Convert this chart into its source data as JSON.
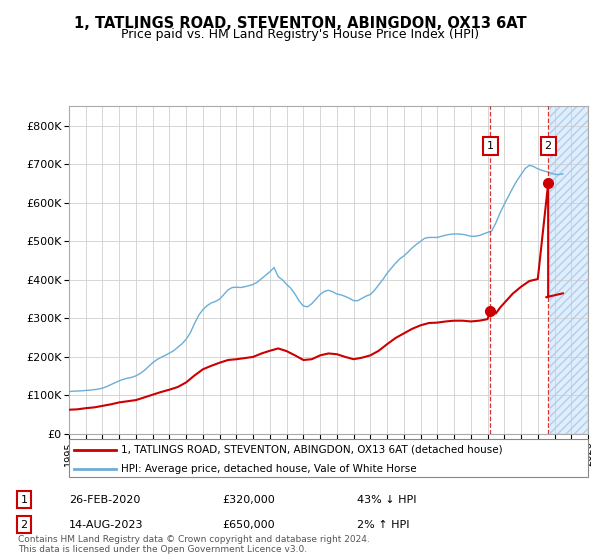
{
  "title": "1, TATLINGS ROAD, STEVENTON, ABINGDON, OX13 6AT",
  "subtitle": "Price paid vs. HM Land Registry's House Price Index (HPI)",
  "title_fontsize": 10.5,
  "subtitle_fontsize": 9,
  "ylim": [
    0,
    850000
  ],
  "yticks": [
    0,
    100000,
    200000,
    300000,
    400000,
    500000,
    600000,
    700000,
    800000
  ],
  "ytick_labels": [
    "£0",
    "£100K",
    "£200K",
    "£300K",
    "£400K",
    "£500K",
    "£600K",
    "£700K",
    "£800K"
  ],
  "hpi_color": "#6baed6",
  "price_color": "#cc0000",
  "marker_color": "#cc0000",
  "dashed_color": "#cc0000",
  "grid_color": "#d0d0d0",
  "bg_color": "#ffffff",
  "plot_bg_color": "#ffffff",
  "future_shade_color": "#ddeeff",
  "legend_label_price": "1, TATLINGS ROAD, STEVENTON, ABINGDON, OX13 6AT (detached house)",
  "legend_label_hpi": "HPI: Average price, detached house, Vale of White Horse",
  "annotation1_date_label": "26-FEB-2020",
  "annotation1_price_label": "£320,000",
  "annotation1_hpi_label": "43% ↓ HPI",
  "annotation2_date_label": "14-AUG-2023",
  "annotation2_price_label": "£650,000",
  "annotation2_hpi_label": "2% ↑ HPI",
  "footer": "Contains HM Land Registry data © Crown copyright and database right 2024.\nThis data is licensed under the Open Government Licence v3.0.",
  "hpi_data": [
    [
      1995.0,
      110000
    ],
    [
      1995.25,
      111000
    ],
    [
      1995.5,
      111500
    ],
    [
      1995.75,
      112000
    ],
    [
      1996.0,
      113000
    ],
    [
      1996.25,
      114000
    ],
    [
      1996.5,
      115000
    ],
    [
      1996.75,
      116500
    ],
    [
      1997.0,
      119000
    ],
    [
      1997.25,
      123000
    ],
    [
      1997.5,
      128000
    ],
    [
      1997.75,
      133000
    ],
    [
      1998.0,
      138000
    ],
    [
      1998.25,
      142000
    ],
    [
      1998.5,
      145000
    ],
    [
      1998.75,
      147000
    ],
    [
      1999.0,
      151000
    ],
    [
      1999.25,
      157000
    ],
    [
      1999.5,
      165000
    ],
    [
      1999.75,
      175000
    ],
    [
      2000.0,
      185000
    ],
    [
      2000.25,
      193000
    ],
    [
      2000.5,
      199000
    ],
    [
      2000.75,
      204000
    ],
    [
      2001.0,
      210000
    ],
    [
      2001.25,
      216000
    ],
    [
      2001.5,
      225000
    ],
    [
      2001.75,
      234000
    ],
    [
      2002.0,
      246000
    ],
    [
      2002.25,
      263000
    ],
    [
      2002.5,
      287000
    ],
    [
      2002.75,
      308000
    ],
    [
      2003.0,
      323000
    ],
    [
      2003.25,
      333000
    ],
    [
      2003.5,
      340000
    ],
    [
      2003.75,
      344000
    ],
    [
      2004.0,
      350000
    ],
    [
      2004.25,
      362000
    ],
    [
      2004.5,
      374000
    ],
    [
      2004.75,
      380000
    ],
    [
      2005.0,
      381000
    ],
    [
      2005.25,
      380000
    ],
    [
      2005.5,
      382000
    ],
    [
      2005.75,
      385000
    ],
    [
      2006.0,
      388000
    ],
    [
      2006.25,
      394000
    ],
    [
      2006.5,
      403000
    ],
    [
      2006.75,
      412000
    ],
    [
      2007.0,
      421000
    ],
    [
      2007.25,
      432000
    ],
    [
      2007.5,
      408000
    ],
    [
      2007.75,
      400000
    ],
    [
      2008.0,
      388000
    ],
    [
      2008.25,
      378000
    ],
    [
      2008.5,
      363000
    ],
    [
      2008.75,
      345000
    ],
    [
      2009.0,
      332000
    ],
    [
      2009.25,
      330000
    ],
    [
      2009.5,
      338000
    ],
    [
      2009.75,
      350000
    ],
    [
      2010.0,
      362000
    ],
    [
      2010.25,
      370000
    ],
    [
      2010.5,
      373000
    ],
    [
      2010.75,
      369000
    ],
    [
      2011.0,
      363000
    ],
    [
      2011.25,
      361000
    ],
    [
      2011.5,
      357000
    ],
    [
      2011.75,
      352000
    ],
    [
      2012.0,
      346000
    ],
    [
      2012.25,
      346000
    ],
    [
      2012.5,
      352000
    ],
    [
      2012.75,
      358000
    ],
    [
      2013.0,
      362000
    ],
    [
      2013.25,
      373000
    ],
    [
      2013.5,
      387000
    ],
    [
      2013.75,
      401000
    ],
    [
      2014.0,
      417000
    ],
    [
      2014.25,
      430000
    ],
    [
      2014.5,
      443000
    ],
    [
      2014.75,
      454000
    ],
    [
      2015.0,
      462000
    ],
    [
      2015.25,
      472000
    ],
    [
      2015.5,
      483000
    ],
    [
      2015.75,
      492000
    ],
    [
      2016.0,
      500000
    ],
    [
      2016.25,
      508000
    ],
    [
      2016.5,
      510000
    ],
    [
      2016.75,
      510000
    ],
    [
      2017.0,
      510000
    ],
    [
      2017.25,
      513000
    ],
    [
      2017.5,
      516000
    ],
    [
      2017.75,
      518000
    ],
    [
      2018.0,
      519000
    ],
    [
      2018.25,
      519000
    ],
    [
      2018.5,
      518000
    ],
    [
      2018.75,
      516000
    ],
    [
      2019.0,
      513000
    ],
    [
      2019.25,
      513000
    ],
    [
      2019.5,
      515000
    ],
    [
      2019.75,
      519000
    ],
    [
      2020.0,
      523000
    ],
    [
      2020.25,
      527000
    ],
    [
      2020.5,
      548000
    ],
    [
      2020.75,
      574000
    ],
    [
      2021.0,
      596000
    ],
    [
      2021.25,
      617000
    ],
    [
      2021.5,
      638000
    ],
    [
      2021.75,
      657000
    ],
    [
      2022.0,
      673000
    ],
    [
      2022.25,
      689000
    ],
    [
      2022.5,
      697000
    ],
    [
      2022.75,
      694000
    ],
    [
      2023.0,
      688000
    ],
    [
      2023.25,
      684000
    ],
    [
      2023.5,
      681000
    ],
    [
      2023.75,
      677000
    ],
    [
      2024.0,
      674000
    ],
    [
      2024.25,
      673000
    ],
    [
      2024.5,
      675000
    ]
  ],
  "price_data_smooth": [
    [
      1995.0,
      63000
    ],
    [
      1995.5,
      64000
    ],
    [
      1996.0,
      67000
    ],
    [
      1996.5,
      69000
    ],
    [
      1997.0,
      73000
    ],
    [
      1997.5,
      77000
    ],
    [
      1998.0,
      82000
    ],
    [
      1998.5,
      85000
    ],
    [
      1999.0,
      88000
    ],
    [
      1999.5,
      95000
    ],
    [
      2000.0,
      102000
    ],
    [
      2000.5,
      109000
    ],
    [
      2001.0,
      115000
    ],
    [
      2001.5,
      122000
    ],
    [
      2002.0,
      134000
    ],
    [
      2002.5,
      152000
    ],
    [
      2003.0,
      168000
    ],
    [
      2003.5,
      177000
    ],
    [
      2004.0,
      185000
    ],
    [
      2004.5,
      192000
    ],
    [
      2005.0,
      194000
    ],
    [
      2005.5,
      197000
    ],
    [
      2006.0,
      200000
    ],
    [
      2006.5,
      209000
    ],
    [
      2007.0,
      216000
    ],
    [
      2007.5,
      222000
    ],
    [
      2008.0,
      215000
    ],
    [
      2008.5,
      204000
    ],
    [
      2009.0,
      192000
    ],
    [
      2009.5,
      194000
    ],
    [
      2010.0,
      204000
    ],
    [
      2010.5,
      209000
    ],
    [
      2011.0,
      207000
    ],
    [
      2011.5,
      200000
    ],
    [
      2012.0,
      194000
    ],
    [
      2012.5,
      198000
    ],
    [
      2013.0,
      204000
    ],
    [
      2013.5,
      216000
    ],
    [
      2014.0,
      233000
    ],
    [
      2014.5,
      249000
    ],
    [
      2015.0,
      261000
    ],
    [
      2015.5,
      273000
    ],
    [
      2016.0,
      282000
    ],
    [
      2016.5,
      288000
    ],
    [
      2017.0,
      289000
    ],
    [
      2017.5,
      292000
    ],
    [
      2018.0,
      294000
    ],
    [
      2018.5,
      294000
    ],
    [
      2019.0,
      292000
    ],
    [
      2019.5,
      294000
    ],
    [
      2020.0,
      298000
    ],
    [
      2020.17,
      320000
    ],
    [
      2020.5,
      313000
    ],
    [
      2020.75,
      328000
    ],
    [
      2021.0,
      340000
    ],
    [
      2021.5,
      364000
    ],
    [
      2022.0,
      382000
    ],
    [
      2022.5,
      397000
    ],
    [
      2023.0,
      402000
    ],
    [
      2023.5,
      355000
    ],
    [
      2024.0,
      360000
    ],
    [
      2024.5,
      365000
    ]
  ],
  "sale1_x": 2020.17,
  "sale1_y": 320000,
  "sale2_x": 2023.62,
  "sale2_y": 650000,
  "sale2_spike_x": 2023.62,
  "xmin": 1995,
  "xmax": 2026,
  "future_shade_start": 2023.75
}
